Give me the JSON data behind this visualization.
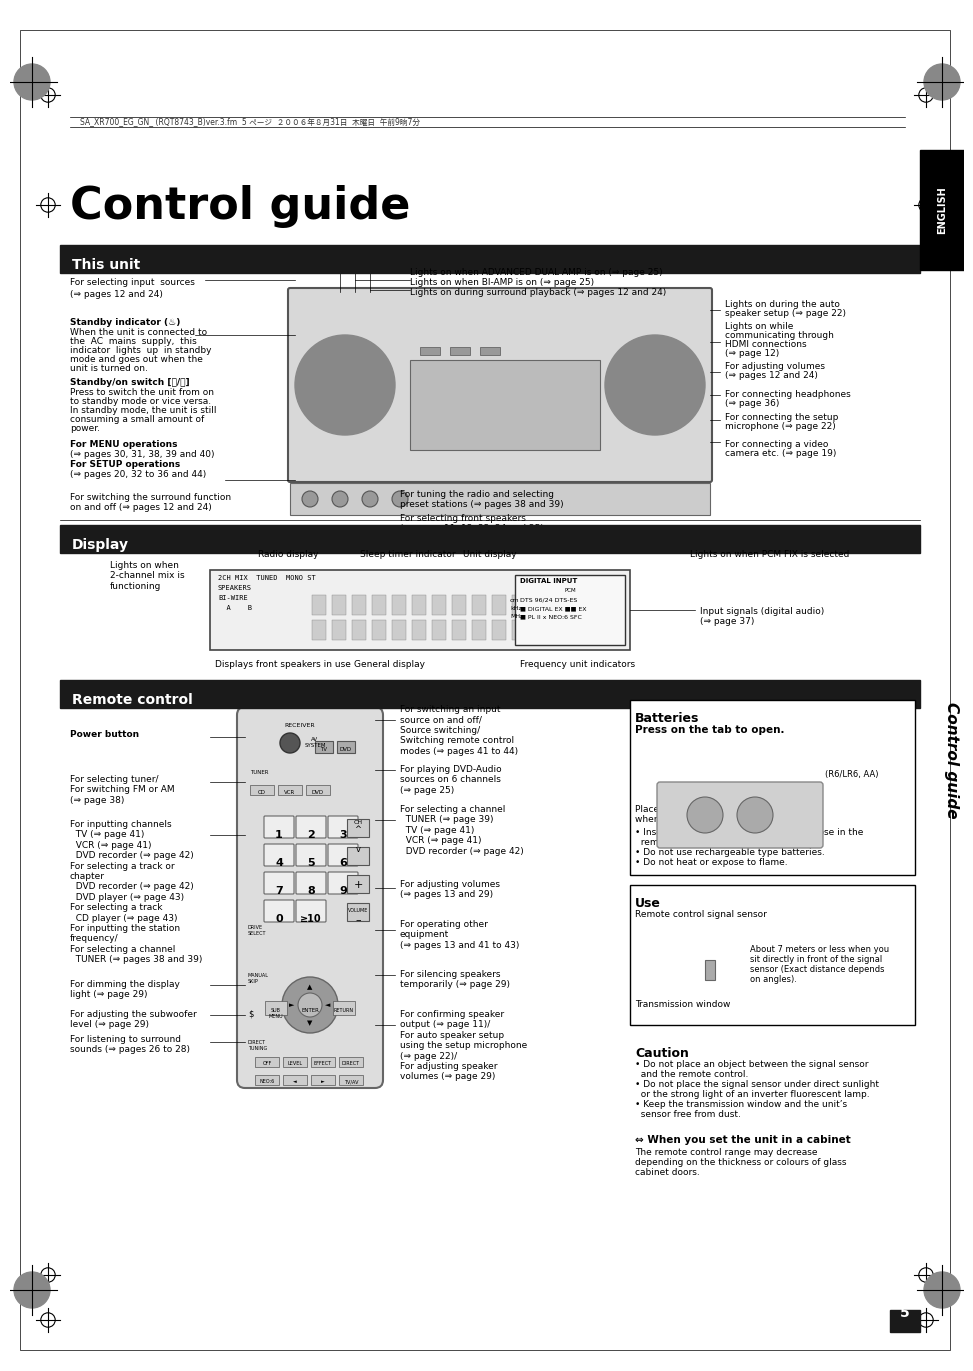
{
  "title": "Control guide",
  "page_number": "5",
  "header_text": "SA_XR700_EG_GN_ (RQT8743_B)ver.3.fm  5 ページ  ２００６年８月31日  木曜日  午前9晌7分",
  "english_tab": "ENGLISH",
  "right_tab": "Control guide",
  "section1_title": "This unit",
  "section2_title": "Display",
  "section3_title": "Remote control",
  "bg_color": "#ffffff",
  "section_header_bg": "#1a1a1a",
  "section_header_fg": "#ffffff",
  "body_text_color": "#000000",
  "english_tab_bg": "#000000",
  "english_tab_fg": "#ffffff",
  "this_unit_annotations_left": [
    "For selecting input sources\n(⇒ pages 12 and 24)",
    "Standby indicator (♨)\nWhen the unit is connected to\nthe AC mains supply, this\nindicator lights up in standby\nmode and goes out when the\nunit is turned on.",
    "Standby/on switch [⏻/⏸]\nPress to switch the unit from on\nto standby mode or vice versa.\nIn standby mode, the unit is still\nconsuming a small amount of\npower.",
    "For MENU operations\n(⇒ pages 30, 31, 38, 39 and 40)\nFor SETUP operations\n(⇒ pages 20, 32 to 36 and 44)",
    "For switching the surround function\non and off (⇒ pages 12 and 24)"
  ],
  "this_unit_annotations_top": [
    "Lights on when ADVANCED DUAL AMP is on (⇒ page 25)",
    "Lights on when BI-AMP is on (⇒ page 25)",
    "Lights on during surround playback (⇒ pages 12 and 24)"
  ],
  "this_unit_annotations_right": [
    "Lights on during the auto\nspeaker setup (⇒ page 22)",
    "Lights on while\ncommunicating through\nHDMI connections\n(⇒ page 12)",
    "For adjusting volumes\n(⇒ pages 12 and 24)",
    "For connecting headphones\n(⇒ page 36)",
    "For connecting the setup\nmicrophone (⇒ page 22)",
    "For connecting a video\ncamera etc. (⇒ page 19)"
  ],
  "this_unit_annotations_bottom": [
    "For tuning the radio and selecting\npreset stations (⇒ pages 38 and 39)",
    "For selecting front speakers\n(⇒ pages 11, 12, 22, 24 and 25)\nFor detecting speakers\nautomatically (⇒ page 10)"
  ],
  "display_labels": [
    "Lights on when\n2-channel mix is\nfunctioning",
    "Radio display",
    "Sleep timer indicator",
    "Unit display",
    "Lights on when PCM FIX is selected",
    "Displays front speakers in use",
    "General display",
    "Frequency unit indicators",
    "Input signals (digital audio)\n(⇒ page 37)"
  ],
  "display_display_text": "2CH MIX   TUNED   MONO ST ■ PS PTY ■ SLEEP          DIGITAL INPUT\n                                                                            PCM\nSPEAKERS                                                     cm  DTS 96/24 DTS-ES\nBI-WIRE                                                       kHz  ■ DIGITAL EX ■ ■ EX\n  A   B                                                      MHz  ■ PL II x NEO:6 SFC",
  "remote_left_labels": [
    "Power button",
    "For selecting tuner/\nFor switching FM or AM\n(⇒ page 38)",
    "For inputting channels\n  TV (⇒ page 41)\n  VCR (⇒ page 41)\n  DVD recorder (⇒ page 42)\nFor selecting a track or\nchapter\n  DVD recorder (⇒ page 42)\n  DVD player (⇒ page 43)\nFor selecting a track\n  CD player (⇒ page 43)\nFor inputting the station\nfrequency/\nFor selecting a channel\n  TUNER (⇒ pages 38 and 39)",
    "For dimming the display\nlight (⇒ page 29)",
    "For adjusting the subwoofer\nlevel (⇒ page 29)",
    "For listening to surround\nsounds (⇒ pages 26 to 28)"
  ],
  "remote_right_labels": [
    "For switching an input\nsource on and off/\nSource switching/\nSwitching remote control\nmodes (⇒ pages 41 to 44)",
    "For playing DVD-Audio\nsources on 6 channels\n(⇒ page 25)",
    "For selecting a channel\n  TUNER (⇒ page 39)\n  TV (⇒ page 41)\n  VCR (⇒ page 41)\n  DVD recorder (⇒ page 42)",
    "For adjusting volumes\n(⇒ pages 13 and 29)",
    "For operating other\nequipment\n(⇒ pages 13 and 41 to 43)",
    "For silencing speakers\ntemporarily (⇒ page 29)",
    "For confirming speaker\noutput (⇒ page 11)/\nFor auto speaker setup\nusing the setup microphone\n(⇒ page 22)/\nFor adjusting speaker\nvolumes (⇒ page 29)"
  ],
  "batteries_title": "Batteries",
  "batteries_text": "Press on the tab to open.\n\nPlace this side in before the other side\nwhen you close.\n• Insert so the poles (⊕ and ⊝) match those in the\n  remote control.\n• Do not use rechargeable type batteries.\n• Do not heat or expose to flame.",
  "batteries_type": "(R6/LR6, AA)",
  "use_title": "Use",
  "use_text": "Remote control signal sensor\n\nAbout 7 meters or less when you\nsit directly in front of the signal\nsensor (Exact distance depends\non angles).\n\nTransmission window",
  "caution_title": "Caution",
  "caution_text": "• Do not place an object between the signal sensor\n  and the remote control.\n• Do not place the signal sensor under direct sunlight\n  or the strong light of an inverter fluorescent lamp.\n• Keep the transmission window and the unit’s\n  sensor free from dust.",
  "cabinet_title": "⇔ When you set the unit in a cabinet",
  "cabinet_text": "The remote control range may decrease\ndepending on the thickness or colours of glass\ncabinet doors."
}
